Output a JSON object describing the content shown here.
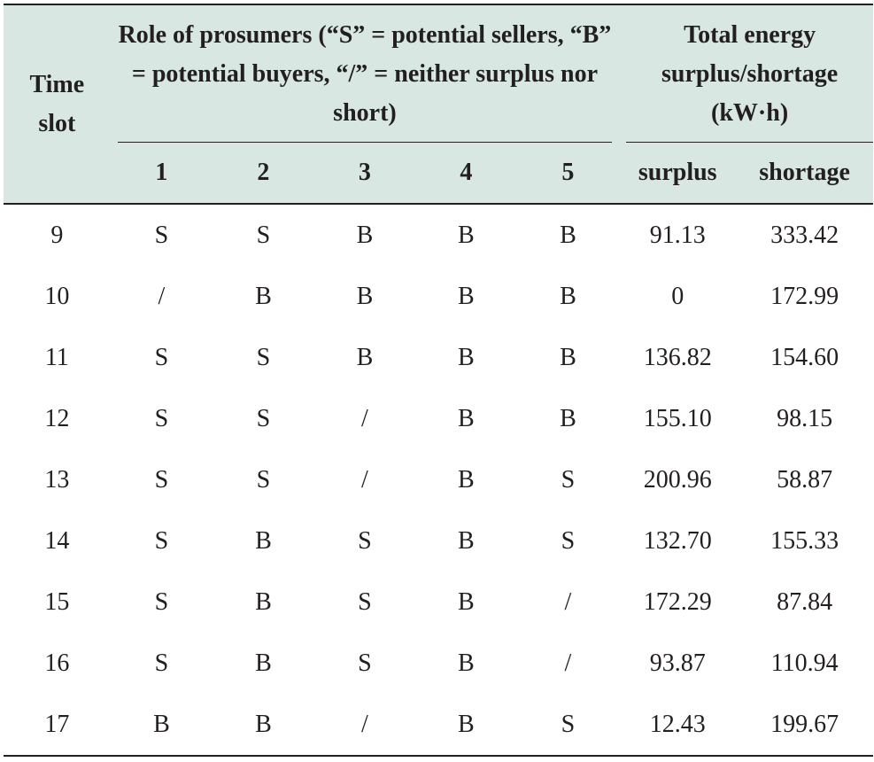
{
  "table": {
    "header": {
      "time_slot": "Time slot",
      "role_group": "Role of prosumers (“S” = potential sellers, “B” = potential buyers, “/” = neither surplus nor short)",
      "energy_group": "Total energy surplus/shortage (kW·h)",
      "prosumers": [
        "1",
        "2",
        "3",
        "4",
        "5"
      ],
      "energy": [
        "surplus",
        "shortage"
      ]
    },
    "rows": [
      {
        "slot": "9",
        "roles": [
          "S",
          "S",
          "B",
          "B",
          "B"
        ],
        "surplus": "91.13",
        "shortage": "333.42"
      },
      {
        "slot": "10",
        "roles": [
          "/",
          "B",
          "B",
          "B",
          "B"
        ],
        "surplus": "0",
        "shortage": "172.99"
      },
      {
        "slot": "11",
        "roles": [
          "S",
          "S",
          "B",
          "B",
          "B"
        ],
        "surplus": "136.82",
        "shortage": "154.60"
      },
      {
        "slot": "12",
        "roles": [
          "S",
          "S",
          "/",
          "B",
          "B"
        ],
        "surplus": "155.10",
        "shortage": "98.15"
      },
      {
        "slot": "13",
        "roles": [
          "S",
          "S",
          "/",
          "B",
          "S"
        ],
        "surplus": "200.96",
        "shortage": "58.87"
      },
      {
        "slot": "14",
        "roles": [
          "S",
          "B",
          "S",
          "B",
          "S"
        ],
        "surplus": "132.70",
        "shortage": "155.33"
      },
      {
        "slot": "15",
        "roles": [
          "S",
          "B",
          "S",
          "B",
          "/"
        ],
        "surplus": "172.29",
        "shortage": "87.84"
      },
      {
        "slot": "16",
        "roles": [
          "S",
          "B",
          "S",
          "B",
          "/"
        ],
        "surplus": "93.87",
        "shortage": "110.94"
      },
      {
        "slot": "17",
        "roles": [
          "B",
          "B",
          "/",
          "B",
          "S"
        ],
        "surplus": "12.43",
        "shortage": "199.67"
      }
    ]
  }
}
